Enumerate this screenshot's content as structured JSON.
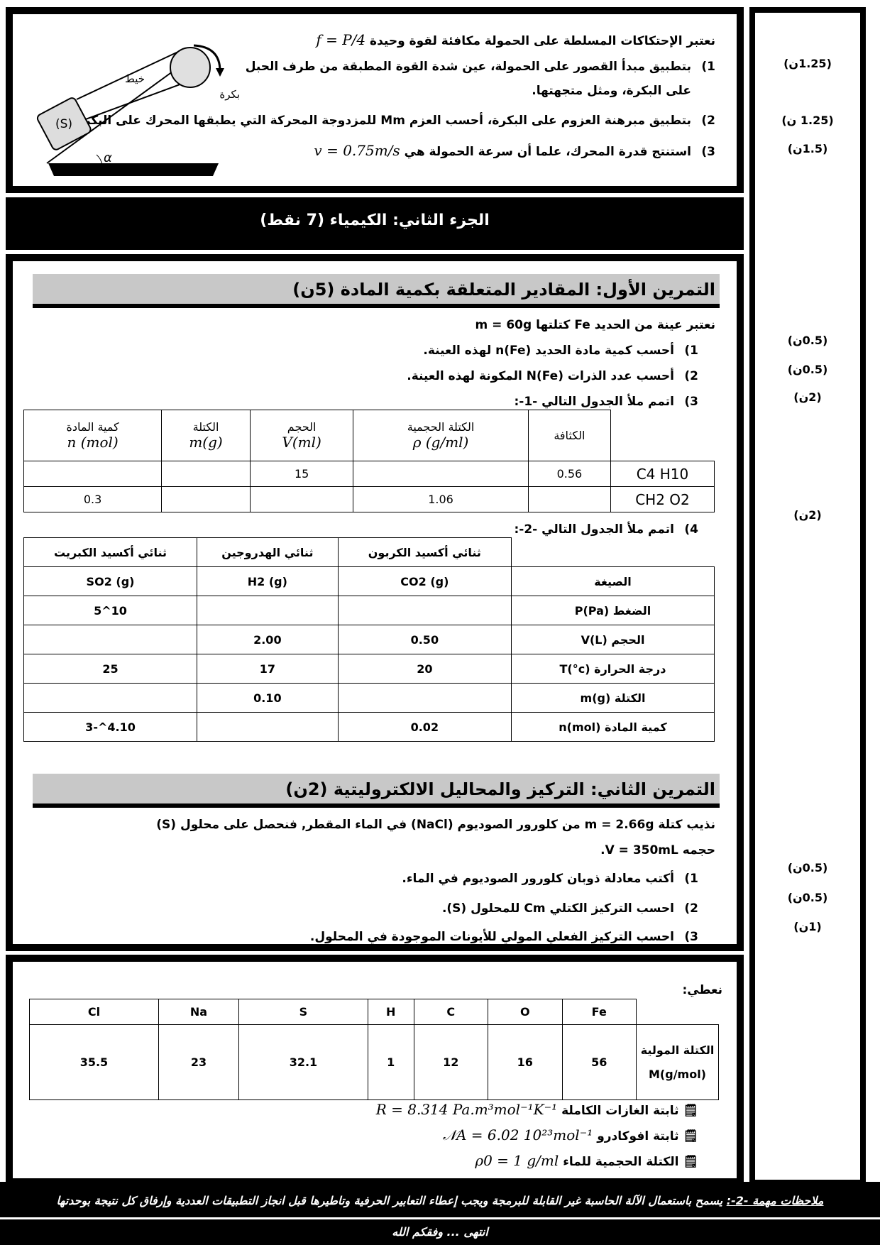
{
  "physics": {
    "intro": "نعتبر الإحتكاكات المسلطة على الحمولة مكافئة لقوة وحيدة",
    "intro_formula": "f = P/4",
    "q1": "بتطبيق مبدأ القصور على الحمولة، عين شدة القوة المطبقة من طرف الحبل",
    "q1_cont": "على البكرة، ومثل متجهتها.",
    "q2": "بتطبيق مبرهنة العزوم على البكرة، أحسب العزم Mm للمزدوجة المحركة التي يطبقها المحرك على البكرة.",
    "q3": "استنتج قدرة المحرك، علما أن سرعة الحمولة هي",
    "q3_formula": "v = 0.75m/s",
    "diagram": {
      "thread": "خيط",
      "pulley": "بكرة",
      "body": "(S)",
      "angle": "α"
    },
    "marks": [
      "(1.25ن)",
      "(1.25 ن)",
      "(1.5ن)"
    ]
  },
  "part2_title": "الجزء الثاني: الكيمياء (7 نقط)",
  "ex1": {
    "title": "التمرين الأول: المقادير المتعلقة بكمية المادة (5ن)",
    "intro": "نعتبر عينة من الحديد Fe كتلتها m = 60g",
    "q1": "أحسب كمية مادة الحديد n(Fe) لهذه العينة.",
    "q2": "أحسب عدد الذرات N(Fe) المكونة لهذه العينة.",
    "q3": "اتمم ملأ الجدول التالي -1-:",
    "q4": "اتمم ملأ الجدول التالي -2-:",
    "marks": [
      "(0.5ن)",
      "(0.5ن)",
      "(2ن)",
      "(2ن)"
    ],
    "table1": {
      "headers": [
        [
          "الكثافة",
          ""
        ],
        [
          "الكتلة الحجمية",
          "ρ (g/ml)"
        ],
        [
          "الحجم",
          "V(ml)"
        ],
        [
          "الكتلة",
          "m(g)"
        ],
        [
          "كمية المادة",
          "n (mol)"
        ]
      ],
      "rows": [
        {
          "label": "C4 H10",
          "cells": [
            "0.56",
            "",
            "15",
            "",
            ""
          ]
        },
        {
          "label": "CH2 O2",
          "cells": [
            "",
            "1.06",
            "",
            "",
            "0.3"
          ]
        }
      ]
    },
    "table2": {
      "names": [
        "ثنائي أكسيد الكربون",
        "ثنائي الهدروجين",
        "ثنائي أكسيد الكبريت"
      ],
      "rows": [
        {
          "label": "الصيغة",
          "cells": [
            "CO2 (g)",
            "H2 (g)",
            "SO2 (g)"
          ]
        },
        {
          "label": "الضغط P(Pa)",
          "cells": [
            "",
            "",
            "10^5"
          ]
        },
        {
          "label": "الحجم V(L)",
          "cells": [
            "0.50",
            "2.00",
            ""
          ]
        },
        {
          "label": "درجة الحرارة T(°c)",
          "cells": [
            "20",
            "17",
            "25"
          ]
        },
        {
          "label": "الكتلة m(g)",
          "cells": [
            "",
            "0.10",
            ""
          ]
        },
        {
          "label": "كمية المادة n(mol)",
          "cells": [
            "0.02",
            "",
            "4.10^-3"
          ]
        }
      ]
    }
  },
  "ex2": {
    "title": "التمرين الثاني: التركيز والمحاليل الالكتروليتية (2ن)",
    "intro": "نذيب كتلة m = 2.66g من كلورور الصوديوم (NaCl) في الماء المقطر, فنحصل على محلول (S)",
    "intro2": "حجمه V = 350mL.",
    "q1": "أكتب معادلة ذوبان كلورور الصوديوم في الماء.",
    "q2": "احسب التركيز الكتلي Cm للمحلول (S).",
    "q3": "احسب التركيز الفعلي المولي للأيونات الموجودة في المحلول.",
    "marks": [
      "(0.5ن)",
      "(0.5ن)",
      "(1ن)"
    ]
  },
  "given": {
    "label": "نعطي:",
    "elements": [
      "Fe",
      "O",
      "C",
      "H",
      "S",
      "Na",
      "Cl"
    ],
    "values": [
      "56",
      "16",
      "12",
      "1",
      "32.1",
      "23",
      "35.5"
    ],
    "row_label": "الكتلة المولية M(g/mol)",
    "constants": [
      {
        "label": "ثابتة الغازات الكاملة",
        "formula": "R = 8.314 Pa.m³mol⁻¹K⁻¹"
      },
      {
        "label": "ثابتة افوكادرو",
        "formula": "𝒩A = 6.02 10²³mol⁻¹"
      },
      {
        "label": "الكتلة الحجمية للماء",
        "formula": "ρ0 = 1 g/ml"
      }
    ]
  },
  "footer": {
    "notes_label": "ملاحظات مهمة -2-:",
    "notes": "يسمح باستعمال الآلة الحاسبة غير القابلة للبرمجة ويجب إعطاء التعابير الحرفية وتاطيرها قبل انجاز التطبيقات العددية وإرفاق كل نتيجة بوحدتها",
    "end": "انتهى ... وفقكم الله"
  }
}
